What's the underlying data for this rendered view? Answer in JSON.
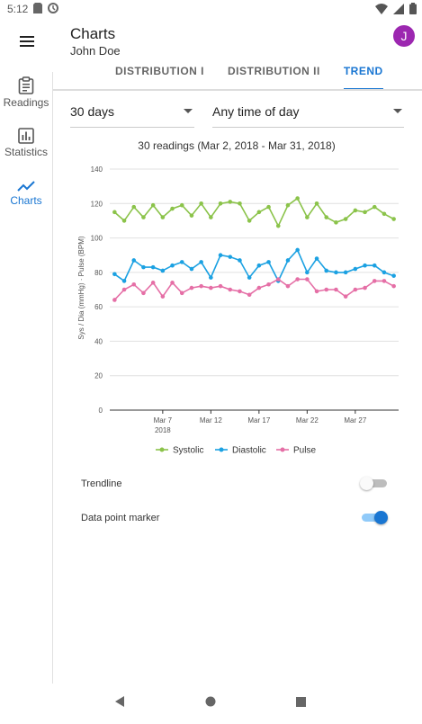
{
  "status": {
    "time": "5:12"
  },
  "header": {
    "title": "Charts",
    "subtitle": "John Doe",
    "avatar_letter": "J",
    "avatar_color": "#9c27b0"
  },
  "tabs": [
    {
      "label": "DISTRIBUTION I"
    },
    {
      "label": "DISTRIBUTION II"
    },
    {
      "label": "TREND"
    }
  ],
  "sidebar": {
    "items": [
      {
        "label": "Readings",
        "icon": "clipboard-icon"
      },
      {
        "label": "Statistics",
        "icon": "bar-chart-icon"
      },
      {
        "label": "Charts",
        "icon": "trend-line-icon"
      }
    ]
  },
  "filters": {
    "period": "30 days",
    "time_of_day": "Any time of day"
  },
  "summary": "30 readings (Mar 2, 2018 - Mar 31, 2018)",
  "chart_data": {
    "type": "line",
    "title": "30 readings (Mar 2, 2018 - Mar 31, 2018)",
    "ylabel": "Sys / Dia (mmHg) · Pulse (BPM)",
    "xlabel": "",
    "ylim": [
      0,
      140
    ],
    "yticks": [
      "140",
      "120",
      "100",
      "80",
      "60",
      "40",
      "20",
      "0"
    ],
    "xticks": [
      {
        "day": 7,
        "label": "Mar 7",
        "sub": "2018"
      },
      {
        "day": 12,
        "label": "Mar 12",
        "sub": ""
      },
      {
        "day": 17,
        "label": "Mar 17",
        "sub": ""
      },
      {
        "day": 22,
        "label": "Mar 22",
        "sub": ""
      },
      {
        "day": 27,
        "label": "Mar 27",
        "sub": ""
      }
    ],
    "x": [
      2,
      3,
      4,
      5,
      6,
      7,
      8,
      9,
      10,
      11,
      12,
      13,
      14,
      15,
      16,
      17,
      18,
      19,
      20,
      21,
      22,
      23,
      24,
      25,
      26,
      27,
      28,
      29,
      30,
      31
    ],
    "series": [
      {
        "name": "Systolic",
        "color": "#8bc34a",
        "values": [
          115,
          110,
          118,
          112,
          119,
          112,
          117,
          119,
          113,
          120,
          112,
          120,
          121,
          120,
          110,
          115,
          118,
          107,
          119,
          123,
          112,
          120,
          112,
          109,
          111,
          116,
          115,
          118,
          114,
          111
        ]
      },
      {
        "name": "Diastolic",
        "color": "#1ba1e2",
        "values": [
          79,
          75,
          87,
          83,
          83,
          81,
          84,
          86,
          82,
          86,
          77,
          90,
          89,
          87,
          77,
          84,
          86,
          75,
          87,
          93,
          80,
          88,
          81,
          80,
          80,
          82,
          84,
          84,
          80,
          78
        ]
      },
      {
        "name": "Pulse",
        "color": "#e56fa6",
        "values": [
          64,
          70,
          73,
          68,
          74,
          66,
          74,
          68,
          71,
          72,
          71,
          72,
          70,
          69,
          67,
          71,
          73,
          76,
          72,
          76,
          76,
          69,
          70,
          70,
          66,
          70,
          71,
          75,
          75,
          72
        ]
      }
    ],
    "grid": true,
    "legend": "bottom"
  },
  "toggles": {
    "trendline": {
      "label": "Trendline",
      "on": false
    },
    "markers": {
      "label": "Data point marker",
      "on": true
    }
  }
}
